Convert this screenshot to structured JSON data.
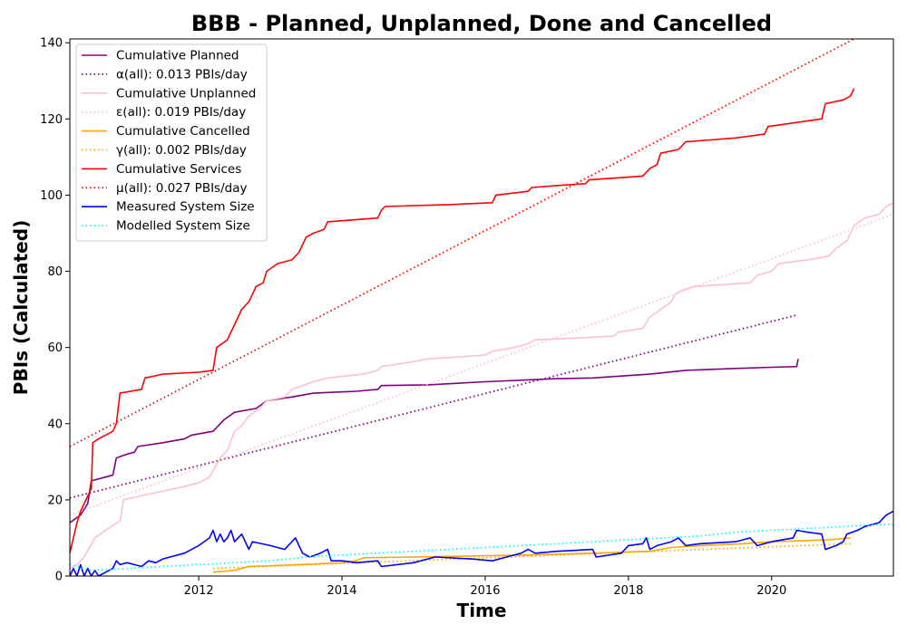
{
  "chart_data": {
    "type": "line",
    "title": "BBB - Planned, Unplanned, Done  and Cancelled",
    "xlabel": "Time",
    "ylabel": "PBIs (Calculated)",
    "xlim": [
      2010.2,
      2021.7
    ],
    "ylim": [
      0,
      141
    ],
    "x_ticks": [
      2012,
      2014,
      2016,
      2018,
      2020
    ],
    "x_tick_labels": [
      "2012",
      "2014",
      "2016",
      "2018",
      "2020"
    ],
    "y_ticks": [
      0,
      20,
      40,
      60,
      80,
      100,
      120,
      140
    ],
    "y_tick_labels": [
      "0",
      "20",
      "40",
      "60",
      "80",
      "100",
      "120",
      "140"
    ],
    "legend_position": "top-left",
    "grid": false,
    "series": [
      {
        "name": "Cumulative Planned",
        "color": "#800080",
        "style": "solid",
        "points": [
          [
            2010.2,
            14
          ],
          [
            2010.35,
            16
          ],
          [
            2010.45,
            19
          ],
          [
            2010.5,
            25
          ],
          [
            2010.7,
            26
          ],
          [
            2010.8,
            26.5
          ],
          [
            2010.85,
            31
          ],
          [
            2011.0,
            32
          ],
          [
            2011.1,
            32.5
          ],
          [
            2011.15,
            34
          ],
          [
            2011.5,
            35
          ],
          [
            2011.8,
            36
          ],
          [
            2011.9,
            37
          ],
          [
            2012.2,
            38
          ],
          [
            2012.35,
            41
          ],
          [
            2012.5,
            43
          ],
          [
            2012.8,
            44
          ],
          [
            2012.95,
            46
          ],
          [
            2013.3,
            47
          ],
          [
            2013.6,
            48
          ],
          [
            2014.2,
            48.5
          ],
          [
            2014.5,
            49
          ],
          [
            2014.55,
            50
          ],
          [
            2015.2,
            50.2
          ],
          [
            2016.0,
            51
          ],
          [
            2017.0,
            51.8
          ],
          [
            2017.5,
            52
          ],
          [
            2018.3,
            53
          ],
          [
            2018.8,
            54
          ],
          [
            2019.5,
            54.5
          ],
          [
            2020.0,
            54.8
          ],
          [
            2020.35,
            55
          ],
          [
            2020.37,
            57
          ]
        ]
      },
      {
        "name": "α(all): 0.013 PBIs/day",
        "color": "#800080",
        "style": "dotted",
        "points": [
          [
            2010.2,
            20.5
          ],
          [
            2020.35,
            68.5
          ]
        ]
      },
      {
        "name": "Cumulative Unplanned",
        "color": "#ffc0cb",
        "style": "solid",
        "points": [
          [
            2010.2,
            2
          ],
          [
            2010.3,
            3
          ],
          [
            2010.4,
            5
          ],
          [
            2010.55,
            10
          ],
          [
            2010.7,
            12
          ],
          [
            2010.9,
            14.5
          ],
          [
            2010.95,
            20
          ],
          [
            2011.3,
            21.5
          ],
          [
            2011.8,
            23.5
          ],
          [
            2012.0,
            24.5
          ],
          [
            2012.15,
            26
          ],
          [
            2012.3,
            31
          ],
          [
            2012.4,
            33
          ],
          [
            2012.5,
            38
          ],
          [
            2012.6,
            39.5
          ],
          [
            2012.7,
            42
          ],
          [
            2012.85,
            44
          ],
          [
            2012.95,
            46
          ],
          [
            2013.2,
            47
          ],
          [
            2013.3,
            49
          ],
          [
            2013.6,
            51
          ],
          [
            2013.8,
            52
          ],
          [
            2014.3,
            53
          ],
          [
            2014.5,
            54
          ],
          [
            2014.55,
            55
          ],
          [
            2014.9,
            56
          ],
          [
            2015.2,
            57
          ],
          [
            2016.0,
            58
          ],
          [
            2016.1,
            59
          ],
          [
            2016.4,
            60
          ],
          [
            2016.6,
            61
          ],
          [
            2016.7,
            62
          ],
          [
            2017.3,
            62.5
          ],
          [
            2017.8,
            63
          ],
          [
            2017.85,
            64
          ],
          [
            2018.2,
            65
          ],
          [
            2018.3,
            68
          ],
          [
            2018.45,
            70
          ],
          [
            2018.6,
            72
          ],
          [
            2018.65,
            74
          ],
          [
            2018.75,
            75
          ],
          [
            2018.9,
            76
          ],
          [
            2019.3,
            76.5
          ],
          [
            2019.7,
            77
          ],
          [
            2019.8,
            79
          ],
          [
            2020.0,
            80
          ],
          [
            2020.1,
            82
          ],
          [
            2020.5,
            83
          ],
          [
            2020.8,
            84
          ],
          [
            2020.9,
            86
          ],
          [
            2021.05,
            88
          ],
          [
            2021.15,
            92
          ],
          [
            2021.3,
            94
          ],
          [
            2021.5,
            95
          ],
          [
            2021.6,
            97
          ],
          [
            2021.7,
            98
          ]
        ]
      },
      {
        "name": "ε(all): 0.019 PBIs/day",
        "color": "#ffc0cb",
        "style": "dotted",
        "points": [
          [
            2010.2,
            16
          ],
          [
            2021.7,
            95
          ]
        ]
      },
      {
        "name": "Cumulative Cancelled",
        "color": "#ffa500",
        "style": "solid",
        "points": [
          [
            2012.2,
            1
          ],
          [
            2012.5,
            1.5
          ],
          [
            2012.7,
            2.5
          ],
          [
            2013.4,
            3
          ],
          [
            2014.0,
            3.5
          ],
          [
            2014.2,
            4
          ],
          [
            2014.3,
            4.8
          ],
          [
            2015.0,
            5
          ],
          [
            2016.5,
            5.5
          ],
          [
            2017.5,
            6
          ],
          [
            2018.3,
            6.5
          ],
          [
            2018.6,
            7.5
          ],
          [
            2019.0,
            8
          ],
          [
            2019.6,
            8.5
          ],
          [
            2020.0,
            9
          ],
          [
            2020.8,
            9.5
          ],
          [
            2021.1,
            10
          ]
        ]
      },
      {
        "name": "γ(all): 0.002 PBIs/day",
        "color": "#ffa500",
        "style": "dotted",
        "points": [
          [
            2012.2,
            2
          ],
          [
            2021.1,
            8.5
          ]
        ]
      },
      {
        "name": "Cumulative Services",
        "color": "#ff0000",
        "style": "solid",
        "points": [
          [
            2010.2,
            6
          ],
          [
            2010.25,
            10
          ],
          [
            2010.3,
            14
          ],
          [
            2010.35,
            17
          ],
          [
            2010.4,
            19
          ],
          [
            2010.5,
            23
          ],
          [
            2010.52,
            35
          ],
          [
            2010.6,
            36
          ],
          [
            2010.7,
            37
          ],
          [
            2010.8,
            38
          ],
          [
            2010.85,
            40
          ],
          [
            2010.9,
            48
          ],
          [
            2011.2,
            49
          ],
          [
            2011.25,
            52
          ],
          [
            2011.5,
            53
          ],
          [
            2012.0,
            53.5
          ],
          [
            2012.2,
            54
          ],
          [
            2012.25,
            60
          ],
          [
            2012.4,
            62
          ],
          [
            2012.5,
            66
          ],
          [
            2012.6,
            70
          ],
          [
            2012.7,
            72
          ],
          [
            2012.8,
            76
          ],
          [
            2012.9,
            77
          ],
          [
            2012.95,
            80
          ],
          [
            2013.1,
            82
          ],
          [
            2013.3,
            83
          ],
          [
            2013.4,
            85
          ],
          [
            2013.5,
            89
          ],
          [
            2013.6,
            90
          ],
          [
            2013.75,
            91
          ],
          [
            2013.8,
            93
          ],
          [
            2014.5,
            94
          ],
          [
            2014.55,
            96
          ],
          [
            2014.6,
            97
          ],
          [
            2015.5,
            97.5
          ],
          [
            2016.1,
            98
          ],
          [
            2016.15,
            100
          ],
          [
            2016.6,
            101
          ],
          [
            2016.65,
            102
          ],
          [
            2017.0,
            102.5
          ],
          [
            2017.4,
            103
          ],
          [
            2017.45,
            104
          ],
          [
            2018.2,
            105
          ],
          [
            2018.3,
            107
          ],
          [
            2018.4,
            108
          ],
          [
            2018.45,
            111
          ],
          [
            2018.7,
            112
          ],
          [
            2018.8,
            114
          ],
          [
            2019.5,
            115
          ],
          [
            2019.9,
            116
          ],
          [
            2019.95,
            118
          ],
          [
            2020.7,
            120
          ],
          [
            2020.75,
            124
          ],
          [
            2021.0,
            125
          ],
          [
            2021.1,
            126
          ],
          [
            2021.15,
            128
          ]
        ]
      },
      {
        "name": "μ(all): 0.027 PBIs/day",
        "color": "#ff0000",
        "style": "dotted",
        "points": [
          [
            2010.2,
            34
          ],
          [
            2021.15,
            141
          ]
        ]
      },
      {
        "name": "Measured System Size",
        "color": "#0000ff",
        "style": "solid",
        "points": [
          [
            2010.2,
            0
          ],
          [
            2010.25,
            2
          ],
          [
            2010.3,
            0
          ],
          [
            2010.35,
            3
          ],
          [
            2010.4,
            0
          ],
          [
            2010.45,
            2
          ],
          [
            2010.5,
            0
          ],
          [
            2010.55,
            1.5
          ],
          [
            2010.6,
            0
          ],
          [
            2010.7,
            1
          ],
          [
            2010.8,
            2
          ],
          [
            2010.85,
            4
          ],
          [
            2010.9,
            3
          ],
          [
            2011.0,
            3.5
          ],
          [
            2011.1,
            3
          ],
          [
            2011.2,
            2.5
          ],
          [
            2011.3,
            4
          ],
          [
            2011.4,
            3.5
          ],
          [
            2011.5,
            4.5
          ],
          [
            2011.6,
            5
          ],
          [
            2011.8,
            6
          ],
          [
            2012.0,
            8
          ],
          [
            2012.15,
            10
          ],
          [
            2012.2,
            12
          ],
          [
            2012.25,
            9
          ],
          [
            2012.3,
            11
          ],
          [
            2012.35,
            9
          ],
          [
            2012.4,
            10
          ],
          [
            2012.45,
            12
          ],
          [
            2012.5,
            9
          ],
          [
            2012.6,
            11
          ],
          [
            2012.7,
            7
          ],
          [
            2012.75,
            9
          ],
          [
            2013.0,
            8
          ],
          [
            2013.2,
            7
          ],
          [
            2013.35,
            10
          ],
          [
            2013.45,
            6
          ],
          [
            2013.55,
            5
          ],
          [
            2013.7,
            6
          ],
          [
            2013.8,
            7
          ],
          [
            2013.85,
            4
          ],
          [
            2014.0,
            4
          ],
          [
            2014.2,
            3.5
          ],
          [
            2014.5,
            4
          ],
          [
            2014.55,
            2.5
          ],
          [
            2015.0,
            3.5
          ],
          [
            2015.3,
            5
          ],
          [
            2015.8,
            4.5
          ],
          [
            2016.1,
            4
          ],
          [
            2016.3,
            5
          ],
          [
            2016.5,
            6
          ],
          [
            2016.6,
            7
          ],
          [
            2016.7,
            6
          ],
          [
            2017.0,
            6.5
          ],
          [
            2017.5,
            7
          ],
          [
            2017.55,
            5
          ],
          [
            2017.9,
            6
          ],
          [
            2018.0,
            8
          ],
          [
            2018.2,
            8.5
          ],
          [
            2018.25,
            10
          ],
          [
            2018.3,
            7
          ],
          [
            2018.4,
            8
          ],
          [
            2018.6,
            9
          ],
          [
            2018.7,
            10
          ],
          [
            2018.8,
            8
          ],
          [
            2019.0,
            8.5
          ],
          [
            2019.5,
            9
          ],
          [
            2019.7,
            10
          ],
          [
            2019.8,
            8
          ],
          [
            2020.0,
            9
          ],
          [
            2020.3,
            10
          ],
          [
            2020.35,
            12
          ],
          [
            2020.5,
            11.5
          ],
          [
            2020.7,
            11
          ],
          [
            2020.75,
            7
          ],
          [
            2020.9,
            8
          ],
          [
            2021.0,
            9
          ],
          [
            2021.05,
            11
          ],
          [
            2021.2,
            12
          ],
          [
            2021.3,
            13
          ],
          [
            2021.5,
            14
          ],
          [
            2021.6,
            16
          ],
          [
            2021.7,
            17
          ]
        ]
      },
      {
        "name": "Modelled System Size",
        "color": "#00ffff",
        "style": "dotted",
        "points": [
          [
            2010.2,
            3
          ],
          [
            2010.5,
            1.5
          ],
          [
            2011.0,
            2
          ],
          [
            2011.5,
            2.5
          ],
          [
            2012.0,
            3
          ],
          [
            2012.5,
            3.5
          ],
          [
            2013.0,
            4
          ],
          [
            2013.5,
            5
          ],
          [
            2014.0,
            5.5
          ],
          [
            2014.5,
            6
          ],
          [
            2015.0,
            6.5
          ],
          [
            2015.5,
            7
          ],
          [
            2016.0,
            7.5
          ],
          [
            2016.5,
            8
          ],
          [
            2017.0,
            8.5
          ],
          [
            2017.5,
            9
          ],
          [
            2018.0,
            9.5
          ],
          [
            2018.5,
            10
          ],
          [
            2019.0,
            10.5
          ],
          [
            2019.5,
            11.5
          ],
          [
            2020.0,
            12
          ],
          [
            2020.5,
            12.5
          ],
          [
            2021.0,
            13
          ],
          [
            2021.5,
            13.5
          ],
          [
            2021.7,
            13.5
          ]
        ]
      }
    ]
  }
}
